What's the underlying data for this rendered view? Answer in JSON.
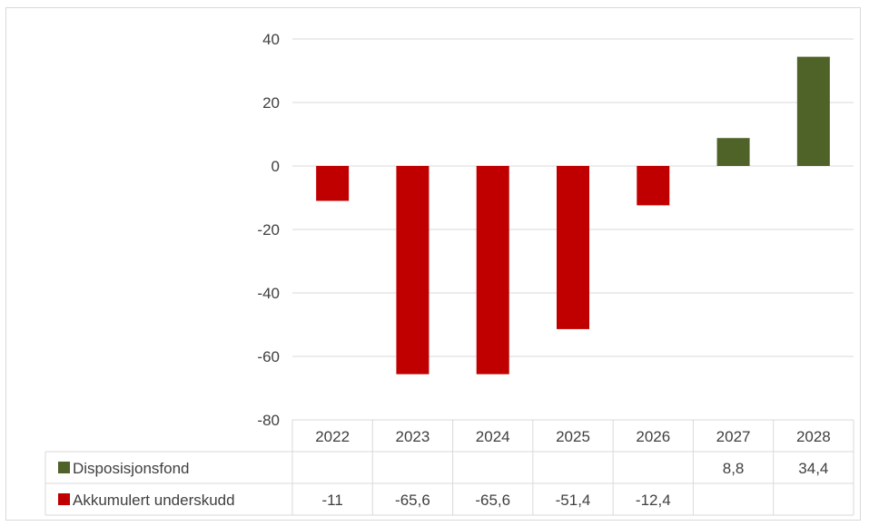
{
  "chart_data": {
    "type": "bar",
    "categories": [
      "2022",
      "2023",
      "2024",
      "2025",
      "2026",
      "2027",
      "2028"
    ],
    "series": [
      {
        "name": "Disposisjonsfond",
        "color": "#4f6228",
        "values": [
          null,
          null,
          null,
          null,
          null,
          8.8,
          34.4
        ],
        "labels": [
          "",
          "",
          "",
          "",
          "",
          "8,8",
          "34,4"
        ]
      },
      {
        "name": "Akkumulert underskudd",
        "color": "#c00000",
        "values": [
          -11,
          -65.6,
          -65.6,
          -51.4,
          -12.4,
          null,
          null
        ],
        "labels": [
          "-11",
          "-65,6",
          "-65,6",
          "-51,4",
          "-12,4",
          "",
          ""
        ]
      }
    ],
    "ylim": [
      -80,
      40
    ],
    "yticks": [
      40,
      20,
      0,
      -20,
      -40,
      -60,
      -80
    ],
    "grid": true,
    "legend": "data-table",
    "title": "",
    "xlabel": "",
    "ylabel": ""
  }
}
